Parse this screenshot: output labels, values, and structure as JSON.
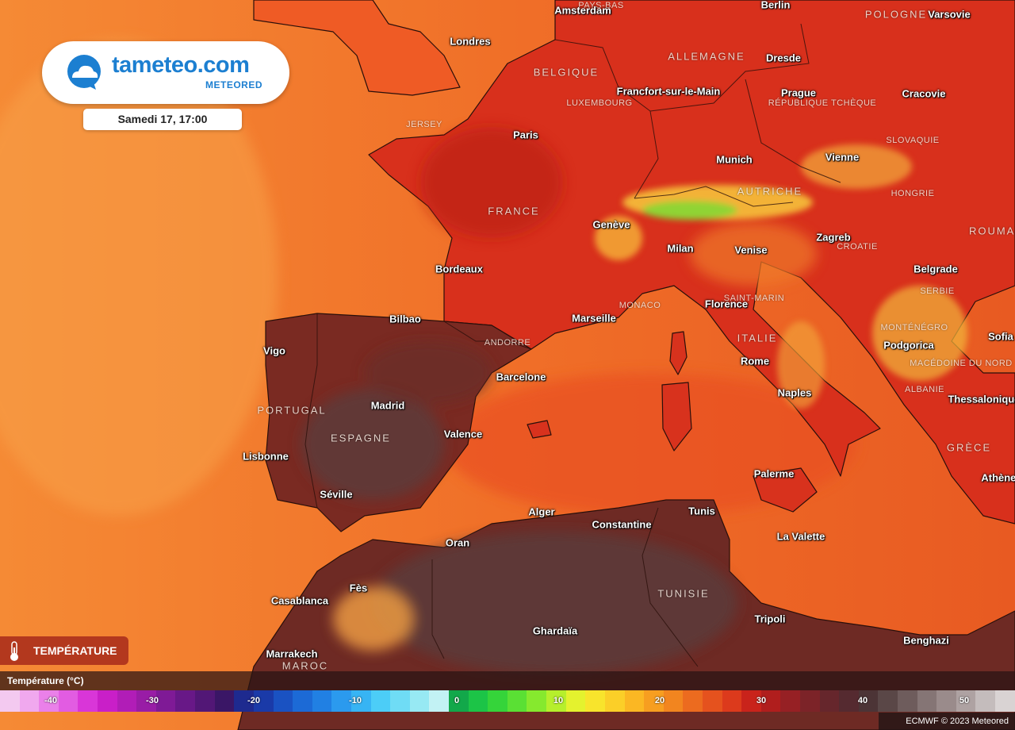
{
  "brand": {
    "name": "tameteo.com",
    "sub": "METEORED",
    "colors": {
      "primary": "#1c7fd1"
    }
  },
  "forecast_time": "Samedi 17, 17:00",
  "layer_button": {
    "label": "TEMPÉRATURE",
    "icon": "thermometer-icon"
  },
  "legend": {
    "title": "Température (°C)",
    "ticks": [
      "-40",
      "-30",
      "-20",
      "-10",
      "0",
      "10",
      "20",
      "30",
      "40",
      "50"
    ],
    "swatches": [
      "#f3c9f0",
      "#f0a8ee",
      "#ea80e9",
      "#e25ce2",
      "#d936d8",
      "#c91fc8",
      "#b11db7",
      "#991ca6",
      "#7f1a96",
      "#681887",
      "#521776",
      "#3a1666",
      "#1e2a8f",
      "#1a3aa8",
      "#1a52c2",
      "#1c6ad6",
      "#2180e3",
      "#2b9aee",
      "#37b4f4",
      "#4ccdf7",
      "#6fdcf5",
      "#97e9f3",
      "#c2f2f4",
      "#12a84a",
      "#1cc447",
      "#35d43a",
      "#5ae034",
      "#86e92e",
      "#b6ef2c",
      "#e4f22e",
      "#f8e42c",
      "#fbcf28",
      "#fbb723",
      "#f79e20",
      "#f2851f",
      "#ec6b1f",
      "#e5521e",
      "#dc3a1c",
      "#c9231b",
      "#b01e1d",
      "#962024",
      "#7c2328",
      "#66262c",
      "#552a30",
      "#4c3436",
      "#5a4747",
      "#6e5c5c",
      "#857575",
      "#9a8b8b",
      "#aea2a2",
      "#c4bcbc",
      "#d9d3d3"
    ],
    "credit": "ECMWF © 2023 Meteored"
  },
  "cities": [
    {
      "name": "Amsterdam"
    },
    {
      "name": "Berlin"
    },
    {
      "name": "Varsovie"
    },
    {
      "name": "Londres"
    },
    {
      "name": "Dresde"
    },
    {
      "name": "Francfort-sur-le-Main"
    },
    {
      "name": "Prague"
    },
    {
      "name": "Cracovie"
    },
    {
      "name": "Paris"
    },
    {
      "name": "Munich"
    },
    {
      "name": "Vienne"
    },
    {
      "name": "Genève"
    },
    {
      "name": "Zagreb"
    },
    {
      "name": "Milan"
    },
    {
      "name": "Venise"
    },
    {
      "name": "Bordeaux"
    },
    {
      "name": "Belgrade"
    },
    {
      "name": "Florence"
    },
    {
      "name": "Marseille"
    },
    {
      "name": "Bilbao"
    },
    {
      "name": "Vigo"
    },
    {
      "name": "Sofia"
    },
    {
      "name": "Podgorica"
    },
    {
      "name": "Rome"
    },
    {
      "name": "Barcelone"
    },
    {
      "name": "Naples"
    },
    {
      "name": "Thessalonique"
    },
    {
      "name": "Madrid"
    },
    {
      "name": "Valence"
    },
    {
      "name": "Lisbonne"
    },
    {
      "name": "Athènes"
    },
    {
      "name": "Palerme"
    },
    {
      "name": "Séville"
    },
    {
      "name": "Alger"
    },
    {
      "name": "Tunis"
    },
    {
      "name": "Constantine"
    },
    {
      "name": "La Valette"
    },
    {
      "name": "Oran"
    },
    {
      "name": "Fès"
    },
    {
      "name": "Casablanca"
    },
    {
      "name": "Tripoli"
    },
    {
      "name": "Ghardaïa"
    },
    {
      "name": "Benghazi"
    },
    {
      "name": "Marrakech"
    }
  ],
  "countries": [
    {
      "name": "POLOGNE"
    },
    {
      "name": "ALLEMAGNE"
    },
    {
      "name": "BELGIQUE"
    },
    {
      "name": "FRANCE"
    },
    {
      "name": "AUTRICHE"
    },
    {
      "name": "ROUMANIE"
    },
    {
      "name": "ITALIE"
    },
    {
      "name": "PORTUGAL"
    },
    {
      "name": "ESPAGNE"
    },
    {
      "name": "GRÈCE"
    },
    {
      "name": "TUNISIE"
    },
    {
      "name": "MAROC"
    }
  ],
  "regions": [
    {
      "name": "PAYS-BAS"
    },
    {
      "name": "LUXEMBOURG"
    },
    {
      "name": "JERSEY"
    },
    {
      "name": "RÉPUBLIQUE TCHÈQUE"
    },
    {
      "name": "SLOVAQUIE"
    },
    {
      "name": "HONGRIE"
    },
    {
      "name": "CROATIE"
    },
    {
      "name": "SERBIE"
    },
    {
      "name": "MONACO"
    },
    {
      "name": "SAINT-MARIN"
    },
    {
      "name": "ANDORRE"
    },
    {
      "name": "MONTÉNÉGRO"
    },
    {
      "name": "MACÉDOINE DU NORD"
    },
    {
      "name": "ALBANIE"
    }
  ]
}
